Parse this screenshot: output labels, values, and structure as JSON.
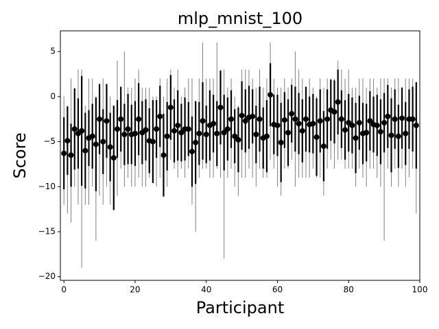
{
  "chart_data": {
    "type": "errorbar",
    "title": "mlp_mnist_100",
    "x_label": "Participant",
    "y_label": "Score",
    "x": [
      0,
      1,
      2,
      3,
      4,
      5,
      6,
      7,
      8,
      9,
      10,
      11,
      12,
      13,
      14,
      15,
      16,
      17,
      18,
      19,
      20,
      21,
      22,
      23,
      24,
      25,
      26,
      27,
      28,
      29,
      30,
      31,
      32,
      33,
      34,
      35,
      36,
      37,
      38,
      39,
      40,
      41,
      42,
      43,
      44,
      45,
      46,
      47,
      48,
      49,
      50,
      51,
      52,
      53,
      54,
      55,
      56,
      57,
      58,
      59,
      60,
      61,
      62,
      63,
      64,
      65,
      66,
      67,
      68,
      69,
      70,
      71,
      72,
      73,
      74,
      75,
      76,
      77,
      78,
      79,
      80,
      81,
      82,
      83,
      84,
      85,
      86,
      87,
      88,
      89,
      90,
      91,
      92,
      93,
      94,
      95,
      96,
      97,
      98,
      99
    ],
    "values": [
      -6.3,
      -4.9,
      -6.5,
      -3.6,
      -4.1,
      -3.8,
      -6.0,
      -4.6,
      -4.4,
      -5.3,
      -2.5,
      -5.0,
      -2.7,
      -5.6,
      -6.8,
      -3.6,
      -2.5,
      -4.2,
      -3.6,
      -4.2,
      -4.1,
      -2.5,
      -4.0,
      -3.7,
      -4.9,
      -5.0,
      -3.6,
      -2.2,
      -6.5,
      -4.4,
      -1.2,
      -3.8,
      -3.2,
      -4.0,
      -3.6,
      -3.6,
      -6.1,
      -5.1,
      -4.1,
      -2.7,
      -4.2,
      -3.2,
      -3.0,
      -4.1,
      -1.2,
      -4.0,
      -3.6,
      -2.5,
      -4.4,
      -4.8,
      -2.1,
      -2.7,
      -2.3,
      -2.2,
      -4.2,
      -2.5,
      -4.6,
      -4.4,
      0.2,
      -3.1,
      -3.2,
      -5.1,
      -2.6,
      -4.0,
      -1.9,
      -2.5,
      -3.0,
      -3.8,
      -2.5,
      -3.1,
      -3.0,
      -4.5,
      -2.7,
      -5.5,
      -2.5,
      -1.5,
      -1.7,
      -0.6,
      -2.5,
      -3.7,
      -2.9,
      -3.2,
      -4.6,
      -2.9,
      -4.1,
      -4.0,
      -2.7,
      -3.1,
      -3.2,
      -3.9,
      -2.9,
      -2.2,
      -4.3,
      -2.5,
      -4.4,
      -2.4,
      -4.1,
      -2.5,
      -2.5,
      -3.2
    ],
    "errors": [
      4.0,
      3.8,
      3.5,
      4.5,
      3.9,
      6.1,
      4.2,
      3.1,
      3.6,
      5.2,
      3.9,
      3.6,
      4.1,
      3.8,
      5.8,
      3.2,
      3.6,
      3.4,
      3.9,
      3.3,
      3.6,
      4.0,
      3.5,
      3.4,
      3.6,
      4.6,
      3.2,
      3.4,
      4.6,
      3.8,
      3.6,
      3.5,
      3.9,
      3.2,
      3.5,
      3.0,
      3.9,
      4.6,
      3.5,
      4.3,
      3.2,
      3.9,
      3.2,
      3.6,
      4.1,
      4.2,
      3.5,
      3.2,
      3.0,
      3.6,
      3.8,
      3.5,
      3.5,
      3.0,
      3.2,
      3.6,
      3.4,
      4.0,
      3.5,
      3.3,
      3.4,
      4.4,
      3.1,
      3.7,
      3.2,
      3.6,
      3.4,
      3.5,
      3.6,
      3.1,
      3.3,
      4.3,
      3.5,
      3.9,
      3.3,
      3.4,
      3.5,
      3.6,
      3.2,
      3.3,
      3.2,
      3.1,
      3.9,
      3.0,
      3.4,
      3.2,
      3.3,
      3.1,
      3.4,
      3.6,
      3.3,
      3.5,
      4.1,
      3.3,
      3.5,
      3.4,
      3.5,
      3.3,
      3.6,
      4.8
    ],
    "lows": [
      -12,
      -13,
      -14,
      -10,
      -12,
      -19,
      -12,
      -12,
      -10,
      -16,
      -11,
      -12,
      -10,
      -12,
      -12.5,
      -11,
      -8,
      -10,
      -9,
      -10,
      -10,
      -9,
      -10,
      -10,
      -9,
      -9,
      -10,
      -9,
      -11,
      -10,
      -7,
      -8,
      -9,
      -8,
      -9,
      -8,
      -12,
      -15,
      -9,
      -8,
      -8,
      -9,
      -9,
      -8,
      -9,
      -18,
      -9,
      -8,
      -10,
      -11,
      -9,
      -9,
      -8,
      -9,
      -10,
      -8,
      -9,
      -9,
      -7,
      -8,
      -10,
      -11,
      -8,
      -8,
      -7,
      -10,
      -9,
      -9,
      -9,
      -9,
      -8,
      -9,
      -9,
      -11,
      -8,
      -7,
      -8,
      -7,
      -7,
      -8,
      -8,
      -8,
      -10,
      -8,
      -9,
      -10,
      -8,
      -8,
      -9,
      -10,
      -16,
      -8,
      -10,
      -8,
      -10,
      -8,
      -10,
      -9,
      -8,
      -13
    ],
    "highs": [
      0,
      -1,
      2,
      1,
      3,
      3,
      -1,
      2,
      2,
      0,
      1,
      2,
      1,
      0,
      -2,
      4,
      1,
      5,
      1,
      1,
      2,
      3,
      1,
      1,
      1,
      0,
      0,
      2,
      0,
      2,
      3,
      1,
      3,
      0,
      1,
      2,
      2,
      -1,
      2,
      6,
      2,
      2,
      2,
      6,
      2,
      3,
      1,
      2,
      0,
      -1,
      3,
      3,
      3,
      2,
      1,
      3,
      1,
      2,
      6,
      2,
      1,
      1,
      2,
      1,
      2,
      5,
      3,
      2,
      1,
      2,
      1,
      0,
      2,
      1,
      2,
      2,
      2,
      4,
      3,
      2,
      3,
      1,
      1,
      2,
      2,
      1,
      2,
      2,
      1,
      2,
      2,
      2,
      1,
      2,
      2,
      1,
      2,
      2,
      2,
      1
    ],
    "color": "#000000",
    "whisker_color": "#808080",
    "xlim": [
      -1,
      100
    ],
    "ylim": [
      -20.4,
      7.3
    ],
    "xticks": [
      0,
      20,
      40,
      60,
      80,
      100
    ],
    "yticks": [
      5,
      0,
      {
        "value": -5,
        "label": "−5"
      },
      {
        "value": -10,
        "label": "−10"
      },
      {
        "value": -15,
        "label": "−15"
      },
      {
        "value": -20,
        "label": "−20"
      }
    ]
  }
}
